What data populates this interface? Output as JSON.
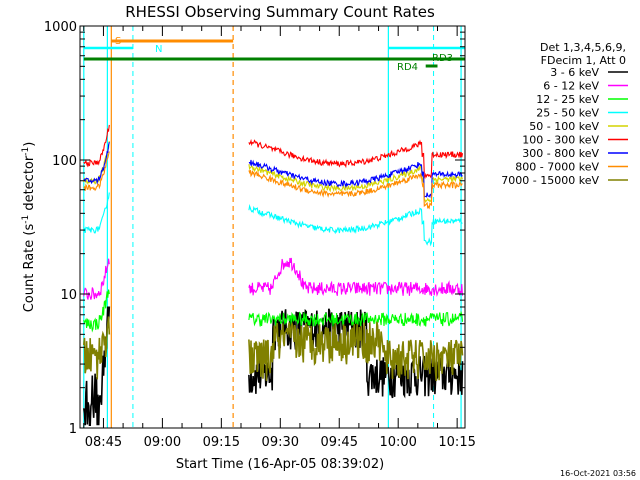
{
  "chart_data": {
    "type": "line",
    "title": "RHESSI Observing Summary Count Rates",
    "xlabel": "Start Time (16-Apr-05 08:39:02)",
    "ylabel_main": "Count Rate (s",
    "ylabel_sup1": "-1",
    "ylabel_mid": " detector",
    "ylabel_sup2": "-1",
    "ylabel_end": ")",
    "y_scale": "log",
    "ylim": [
      1,
      1000
    ],
    "xlim": [
      "08:39:02",
      "10:17:00"
    ],
    "x_ticks": [
      "08:45",
      "09:00",
      "09:15",
      "09:30",
      "09:45",
      "10:00",
      "10:15"
    ],
    "y_ticks": [
      "1",
      "10",
      "100",
      "1000"
    ],
    "legend_placement": "right",
    "legend_header": [
      "Det 1,3,4,5,6,9,",
      "FDecim 1, Att 0"
    ],
    "series": [
      {
        "name": "3 - 6 keV",
        "color": "#000000",
        "level": [
          1.5,
          3.2
        ]
      },
      {
        "name": "6 - 12 keV",
        "color": "#ff00ff",
        "level": [
          10,
          11
        ]
      },
      {
        "name": "12 - 25 keV",
        "color": "#00ff00",
        "level": [
          6,
          6.5
        ]
      },
      {
        "name": "25 - 50 keV",
        "color": "#00ffff",
        "level": [
          30,
          35
        ]
      },
      {
        "name": "50 - 100 keV",
        "color": "#d4d400",
        "level": [
          70,
          72
        ]
      },
      {
        "name": "100 - 300 keV",
        "color": "#ff0000",
        "level": [
          95,
          110
        ]
      },
      {
        "name": "300 - 800 keV",
        "color": "#0000ff",
        "level": [
          70,
          78
        ]
      },
      {
        "name": "800 - 7000 keV",
        "color": "#ff8c00",
        "level": [
          62,
          65
        ]
      },
      {
        "name": "7000 - 15000 keV",
        "color": "#808000",
        "level": [
          3.5,
          3.4
        ]
      }
    ],
    "flags": [
      {
        "label": "S",
        "color": "#ff8c00"
      },
      {
        "label": "N",
        "color": "#00ffff"
      },
      {
        "label": "RD3",
        "color": "#008000"
      },
      {
        "label": "RD4",
        "color": "#008000"
      }
    ],
    "timestamp": "16-Oct-2021 03:56"
  }
}
